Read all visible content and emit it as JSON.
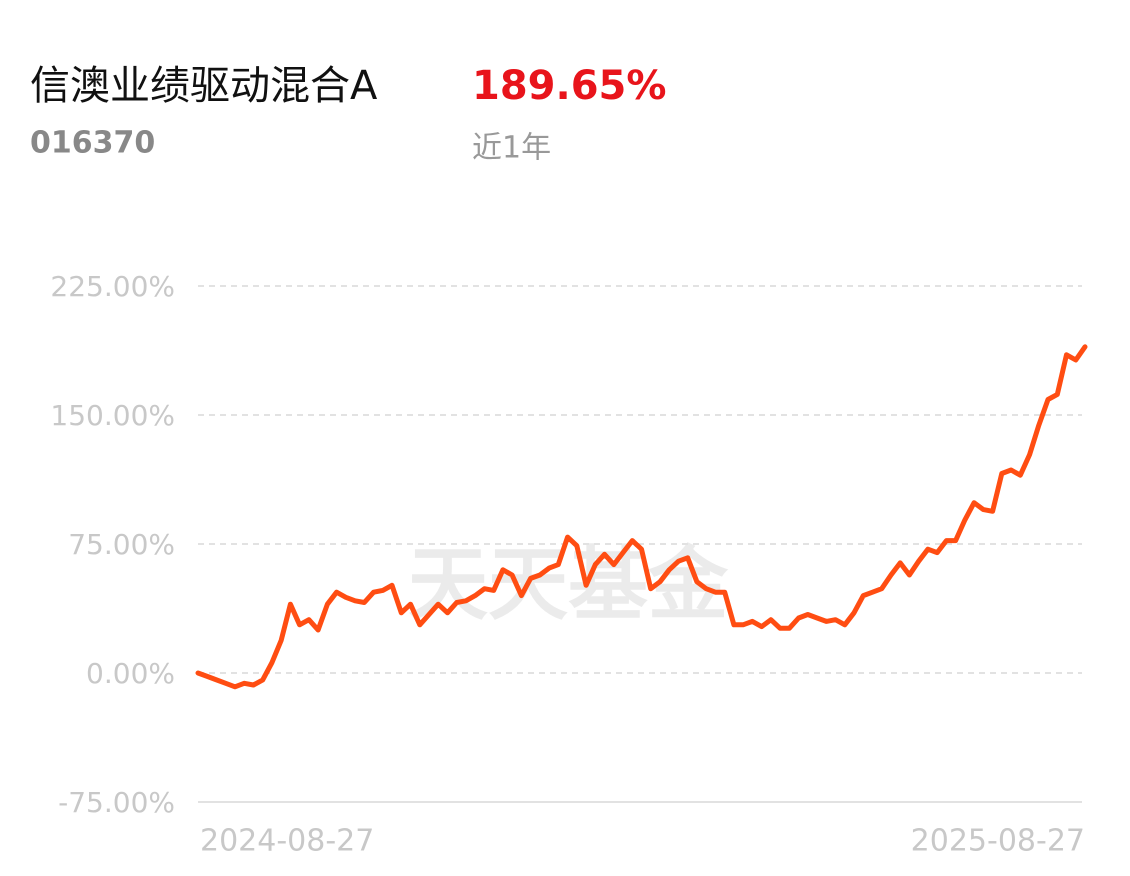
{
  "chart_data": {
    "type": "line",
    "title": "信澳业绩驱动混合A",
    "code": "016370",
    "return_label": "189.65%",
    "period": "近1年",
    "watermark": "天天基金",
    "x": [
      "2024-08-27",
      null,
      null,
      null,
      null,
      null,
      null,
      null,
      null,
      null,
      null,
      null,
      null,
      null,
      null,
      null,
      null,
      null,
      null,
      null,
      null,
      null,
      null,
      null,
      null,
      null,
      null,
      null,
      null,
      null,
      null,
      null,
      null,
      null,
      null,
      null,
      null,
      null,
      null,
      null,
      null,
      null,
      null,
      null,
      null,
      null,
      null,
      null,
      null,
      null,
      null,
      null,
      null,
      null,
      null,
      null,
      null,
      null,
      null,
      null,
      null,
      null,
      null,
      null,
      null,
      null,
      null,
      null,
      null,
      null,
      null,
      null,
      null,
      null,
      null,
      null,
      null,
      null,
      null,
      null,
      null,
      null,
      null,
      null,
      null,
      null,
      null,
      null,
      null,
      null,
      null,
      null,
      null,
      null,
      null,
      null,
      "2025-08-27"
    ],
    "series": [
      {
        "name": "信澳业绩驱动混合A",
        "color": "#ff4d12",
        "values": [
          0,
          -2,
          -4,
          -6,
          -8,
          -6,
          -7,
          -4,
          6,
          19,
          40,
          28,
          31,
          25,
          40,
          47,
          44,
          42,
          41,
          47,
          48,
          51,
          35,
          40,
          28,
          34,
          40,
          35,
          41,
          42,
          45,
          49,
          48,
          60,
          57,
          45,
          55,
          57,
          61,
          63,
          79,
          74,
          51,
          63,
          69,
          63,
          70,
          77,
          72,
          49,
          53,
          60,
          65,
          67,
          53,
          49,
          47,
          47,
          28,
          28,
          30,
          27,
          31,
          26,
          26,
          32,
          34,
          32,
          30,
          31,
          28,
          35,
          45,
          47,
          49,
          57,
          64,
          57,
          65,
          72,
          70,
          77,
          77,
          89,
          99,
          95,
          94,
          116,
          118,
          115,
          127,
          144,
          159,
          162,
          185,
          182,
          189.65
        ]
      }
    ],
    "ylim": [
      -75,
      225
    ],
    "yticks": [
      {
        "value": -75,
        "label": "-75.00%"
      },
      {
        "value": 0,
        "label": "0.00%"
      },
      {
        "value": 75,
        "label": "75.00%"
      },
      {
        "value": 150,
        "label": "150.00%"
      },
      {
        "value": 225,
        "label": "225.00%"
      }
    ],
    "grid": true
  }
}
